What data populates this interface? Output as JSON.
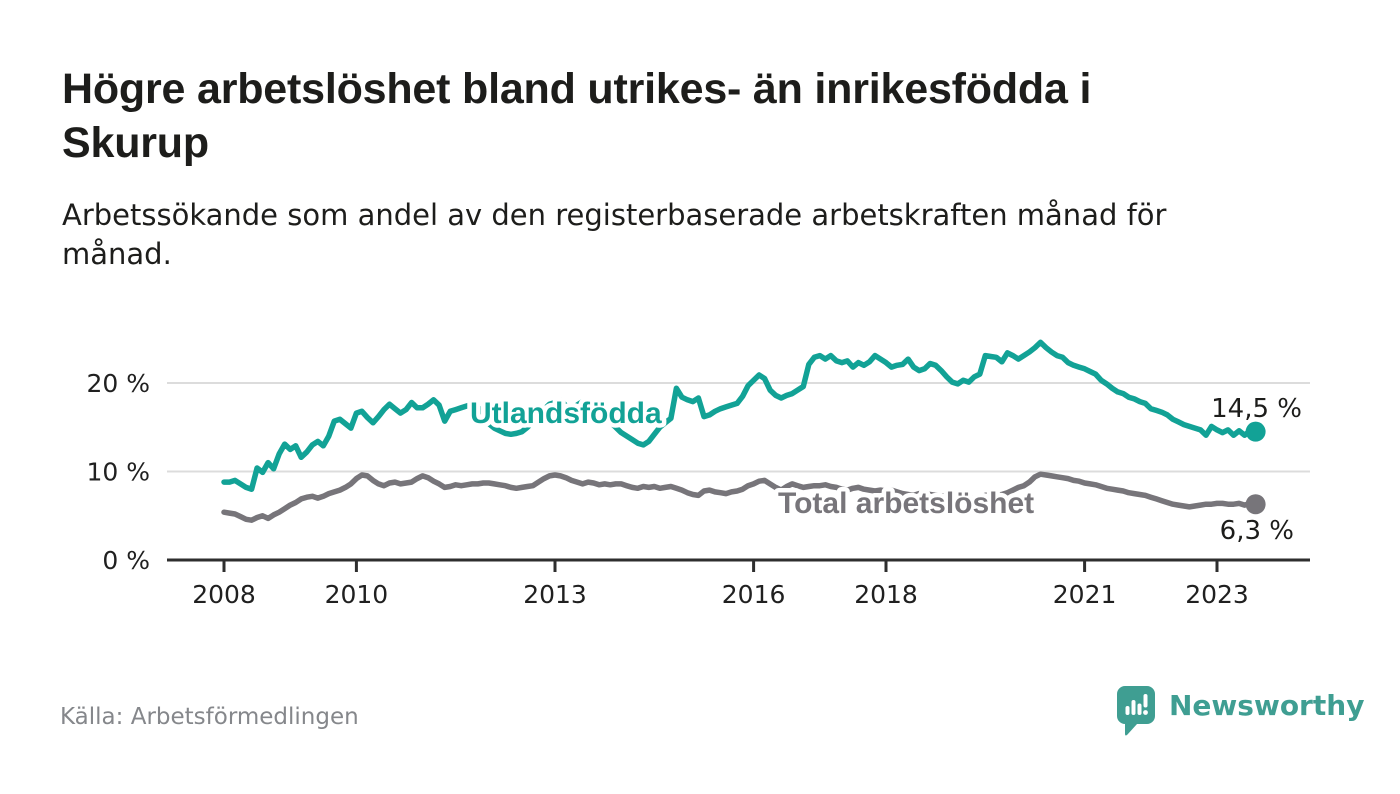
{
  "header": {
    "title": "Högre arbetslöshet bland utrikes- än inrikesfödda i\nSkurup",
    "subtitle": "Arbetssökande som andel av den registerbaserade arbetskraften månad för\nmånad."
  },
  "chart_data": {
    "type": "line",
    "title": "Högre arbetslöshet bland utrikes- än inrikesfödda i Skurup",
    "subtitle": "Arbetssökande som andel av den registerbaserade arbetskraften månad för månad.",
    "unit": "%",
    "x_start_year": 2008,
    "x_end_label": "aug 2023",
    "points_per_year": 12,
    "x_ticks": [
      2008,
      2010,
      2013,
      2016,
      2018,
      2021,
      2023
    ],
    "y_ticks": [
      {
        "value": 0,
        "label": "0 %"
      },
      {
        "value": 10,
        "label": "10 %"
      },
      {
        "value": 20,
        "label": "20 %"
      }
    ],
    "ylim": [
      0,
      27
    ],
    "grid": "horizontal",
    "legend_position": "inline-labels",
    "series": [
      {
        "name": "Utlandsfödda",
        "color": "#12a296",
        "end_label": "14,5 %",
        "last_value": 14.5,
        "values": [
          8.8,
          8.8,
          9.0,
          8.6,
          8.2,
          8.0,
          10.4,
          9.9,
          11.0,
          10.3,
          12.0,
          13.1,
          12.5,
          12.9,
          11.6,
          12.2,
          13.0,
          13.4,
          12.9,
          14.0,
          15.7,
          15.9,
          15.4,
          14.9,
          16.6,
          16.8,
          16.1,
          15.5,
          16.2,
          17.0,
          17.6,
          17.1,
          16.6,
          17.0,
          17.8,
          17.2,
          17.2,
          17.6,
          18.1,
          17.5,
          15.7,
          16.8,
          17.0,
          17.2,
          17.4,
          17.6,
          17.3,
          16.6,
          15.4,
          14.9,
          14.6,
          14.3,
          14.2,
          14.3,
          14.5,
          15.0,
          15.6,
          16.3,
          17.0,
          17.6,
          17.8,
          18.1,
          17.4,
          17.0,
          17.5,
          17.9,
          17.6,
          17.2,
          16.8,
          16.2,
          15.6,
          15.0,
          14.4,
          14.0,
          13.6,
          13.2,
          13.0,
          13.4,
          14.2,
          15.0,
          15.5,
          16.0,
          19.4,
          18.4,
          18.1,
          17.9,
          18.3,
          16.2,
          16.4,
          16.8,
          17.1,
          17.3,
          17.5,
          17.7,
          18.5,
          19.7,
          20.3,
          20.9,
          20.5,
          19.2,
          18.6,
          18.3,
          18.6,
          18.8,
          19.2,
          19.6,
          22.1,
          22.9,
          23.1,
          22.7,
          23.1,
          22.5,
          22.3,
          22.5,
          21.8,
          22.3,
          22.0,
          22.4,
          23.1,
          22.7,
          22.3,
          21.8,
          22.0,
          22.1,
          22.7,
          21.8,
          21.4,
          21.6,
          22.2,
          22.0,
          21.4,
          20.7,
          20.1,
          19.9,
          20.3,
          20.1,
          20.7,
          21.0,
          23.1,
          23.0,
          22.9,
          22.4,
          23.4,
          23.1,
          22.7,
          23.1,
          23.5,
          24.0,
          24.6,
          24.0,
          23.5,
          23.1,
          22.9,
          22.3,
          22.0,
          21.8,
          21.6,
          21.3,
          21.0,
          20.3,
          19.9,
          19.4,
          19.0,
          18.8,
          18.4,
          18.2,
          17.9,
          17.7,
          17.1,
          16.9,
          16.7,
          16.4,
          15.9,
          15.6,
          15.3,
          15.1,
          14.9,
          14.7,
          14.1,
          15.1,
          14.7,
          14.4,
          14.7,
          14.1,
          14.6,
          14.1,
          14.6,
          14.5
        ]
      },
      {
        "name": "Total arbetslöshet",
        "color": "#77757a",
        "end_label": "6,3 %",
        "last_value": 6.3,
        "values": [
          5.4,
          5.3,
          5.2,
          4.9,
          4.6,
          4.5,
          4.8,
          5.0,
          4.7,
          5.1,
          5.4,
          5.8,
          6.2,
          6.5,
          6.9,
          7.1,
          7.2,
          7.0,
          7.2,
          7.5,
          7.7,
          7.9,
          8.2,
          8.6,
          9.2,
          9.6,
          9.5,
          9.0,
          8.6,
          8.4,
          8.7,
          8.8,
          8.6,
          8.7,
          8.8,
          9.2,
          9.5,
          9.3,
          8.9,
          8.6,
          8.2,
          8.3,
          8.5,
          8.4,
          8.5,
          8.6,
          8.6,
          8.7,
          8.7,
          8.6,
          8.5,
          8.4,
          8.2,
          8.1,
          8.2,
          8.3,
          8.4,
          8.8,
          9.2,
          9.5,
          9.6,
          9.5,
          9.3,
          9.0,
          8.8,
          8.6,
          8.8,
          8.7,
          8.5,
          8.6,
          8.5,
          8.6,
          8.6,
          8.4,
          8.2,
          8.1,
          8.3,
          8.2,
          8.3,
          8.1,
          8.2,
          8.3,
          8.1,
          7.9,
          7.6,
          7.4,
          7.3,
          7.8,
          7.9,
          7.7,
          7.6,
          7.5,
          7.7,
          7.8,
          8.0,
          8.4,
          8.6,
          8.9,
          9.0,
          8.6,
          8.2,
          7.9,
          8.3,
          8.6,
          8.4,
          8.2,
          8.3,
          8.4,
          8.4,
          8.5,
          8.3,
          8.2,
          8.0,
          7.9,
          8.1,
          8.2,
          8.0,
          7.9,
          7.8,
          7.9,
          7.8,
          7.9,
          7.7,
          7.5,
          7.4,
          7.3,
          7.5,
          7.6,
          7.4,
          7.3,
          7.2,
          7.3,
          7.2,
          7.3,
          7.1,
          7.0,
          7.0,
          7.1,
          7.3,
          7.4,
          7.3,
          7.4,
          7.6,
          7.9,
          8.2,
          8.4,
          8.8,
          9.4,
          9.7,
          9.6,
          9.5,
          9.4,
          9.3,
          9.2,
          9.0,
          8.9,
          8.7,
          8.6,
          8.5,
          8.3,
          8.1,
          8.0,
          7.9,
          7.8,
          7.6,
          7.5,
          7.4,
          7.3,
          7.1,
          6.9,
          6.7,
          6.5,
          6.3,
          6.2,
          6.1,
          6.0,
          6.1,
          6.2,
          6.3,
          6.3,
          6.4,
          6.4,
          6.3,
          6.3,
          6.4,
          6.2,
          6.4,
          6.3
        ]
      }
    ]
  },
  "footer": {
    "source": "Källa: Arbetsförmedlingen",
    "logo_text": "Newsworthy"
  },
  "colors": {
    "accent_teal": "#12a296",
    "series_gray": "#77757a",
    "logo_teal": "#3f9e92",
    "grid": "#dcdcdc",
    "axis": "#2e2e2e",
    "text": "#1d1d1b",
    "muted": "#85878b"
  }
}
